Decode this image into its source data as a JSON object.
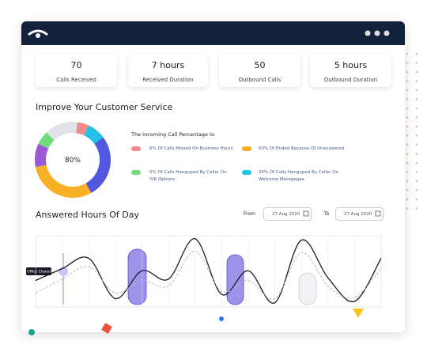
{
  "stats": [
    {
      "value": 70,
      "label": "Calls Received"
    },
    {
      "value": "7 hours",
      "label": "Received Duration"
    },
    {
      "value": 50,
      "label": "Outbound Calls"
    },
    {
      "value": "5 hours",
      "label": "Outbound Duration"
    }
  ],
  "service_title": "Improve Your Customer Service",
  "donut": {
    "type": "pie",
    "center_label": "80%",
    "values": [
      5,
      8,
      27,
      30,
      10,
      6,
      14
    ],
    "colors": [
      "#f28b8b",
      "#22c3e6",
      "#5058e0",
      "#f9b024",
      "#9b59d6",
      "#6fdc7a",
      "#e2e3ea"
    ]
  },
  "legend": {
    "title": "The Incoming Call Percentage Is:",
    "items": [
      {
        "label": "6% Of Calls Missed On Business Hours",
        "color": "#f28b8b"
      },
      {
        "label": "63% Of Ended Because Of Unanswered",
        "color": "#f9b024"
      },
      {
        "label": "5% Of Calls Hanguped By Caller On IVR Options",
        "color": "#6fdc7a"
      },
      {
        "label": "26% Of Calls Hanguped By Caller On Welcome Messgegae",
        "color": "#22c3e6"
      }
    ]
  },
  "hours_title": "Answered Hours Of Day",
  "filters": {
    "from_label": "From",
    "from_date": "27 Aug 2020",
    "to_label": "To",
    "to_date": "27 Aug 2020"
  },
  "chart_data": {
    "type": "line",
    "ylim": [
      0,
      100
    ],
    "annotation": "Office Closed",
    "series": [
      {
        "color": "#1a1a2a",
        "values": [
          38,
          55,
          70,
          12,
          52,
          40,
          98,
          18,
          52,
          6,
          96,
          42,
          8,
          70
        ]
      },
      {
        "color": "#b8b8c8",
        "values": [
          20,
          40,
          58,
          20,
          38,
          30,
          80,
          22,
          38,
          12,
          78,
          30,
          14,
          55
        ]
      }
    ]
  }
}
